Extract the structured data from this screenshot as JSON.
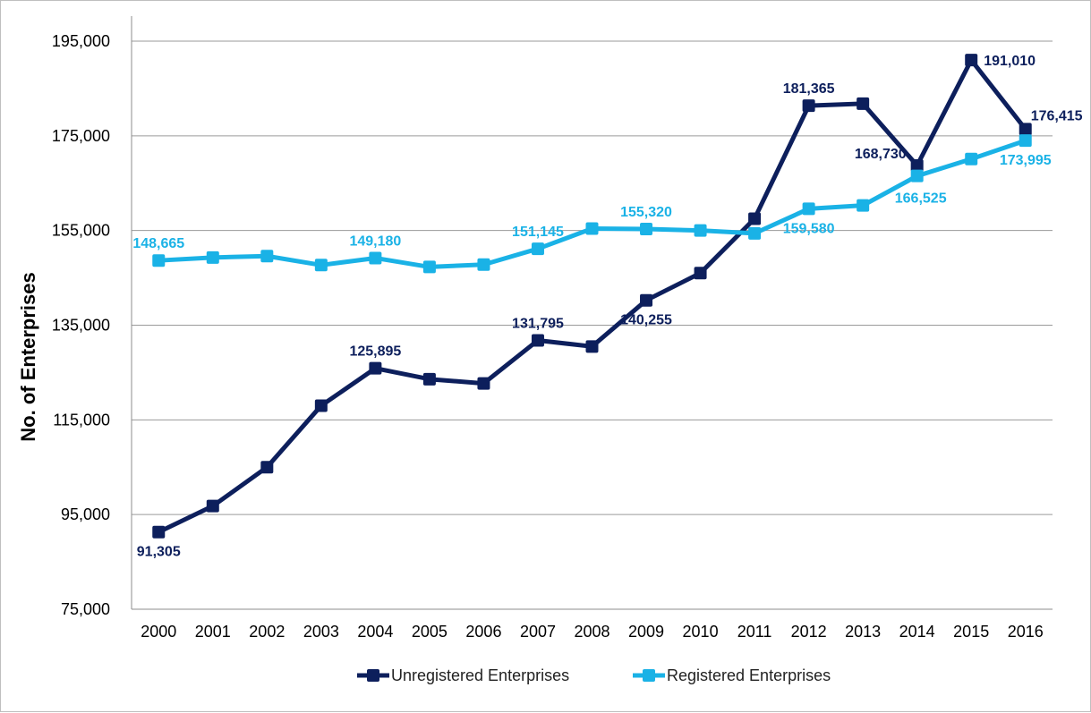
{
  "chart_data": {
    "type": "line",
    "ylabel": "No. of Enterprises",
    "xlabel": "",
    "ylim": [
      75000,
      195000
    ],
    "yticks": [
      75000,
      95000,
      115000,
      135000,
      155000,
      175000,
      195000
    ],
    "ytick_labels": [
      "75,000",
      "95,000",
      "115,000",
      "135,000",
      "155,000",
      "175,000",
      "195,000"
    ],
    "grid": true,
    "legend_position": "bottom",
    "categories": [
      "2000",
      "2001",
      "2002",
      "2003",
      "2004",
      "2005",
      "2006",
      "2007",
      "2008",
      "2009",
      "2010",
      "2011",
      "2012",
      "2013",
      "2014",
      "2015",
      "2016"
    ],
    "series": [
      {
        "name": "Unregistered Enterprises",
        "color": "#0d1f5c",
        "values": [
          91305,
          96800,
          105000,
          118000,
          125895,
          123600,
          122700,
          131795,
          130500,
          140255,
          146000,
          157500,
          181365,
          181800,
          168730,
          191010,
          176415
        ],
        "labels": [
          {
            "index": 0,
            "text": "91,305",
            "pos": "below"
          },
          {
            "index": 4,
            "text": "125,895",
            "pos": "above"
          },
          {
            "index": 7,
            "text": "131,795",
            "pos": "above"
          },
          {
            "index": 9,
            "text": "140,255",
            "pos": "below"
          },
          {
            "index": 12,
            "text": "181,365",
            "pos": "above"
          },
          {
            "index": 14,
            "text": "168,730",
            "pos": "left"
          },
          {
            "index": 15,
            "text": "191,010",
            "pos": "right"
          },
          {
            "index": 16,
            "text": "176,415",
            "pos": "aboveright"
          }
        ]
      },
      {
        "name": "Registered Enterprises",
        "color": "#1ab2e6",
        "values": [
          148665,
          149300,
          149600,
          147700,
          149180,
          147300,
          147800,
          151145,
          155400,
          155320,
          155000,
          154400,
          159580,
          160300,
          166525,
          170100,
          173995
        ],
        "labels": [
          {
            "index": 0,
            "text": "148,665",
            "pos": "above"
          },
          {
            "index": 4,
            "text": "149,180",
            "pos": "above"
          },
          {
            "index": 7,
            "text": "151,145",
            "pos": "above"
          },
          {
            "index": 9,
            "text": "155,320",
            "pos": "above"
          },
          {
            "index": 12,
            "text": "159,580",
            "pos": "below"
          },
          {
            "index": 14,
            "text": "166,525",
            "pos": "belowright"
          },
          {
            "index": 16,
            "text": "173,995",
            "pos": "below"
          }
        ]
      }
    ]
  }
}
